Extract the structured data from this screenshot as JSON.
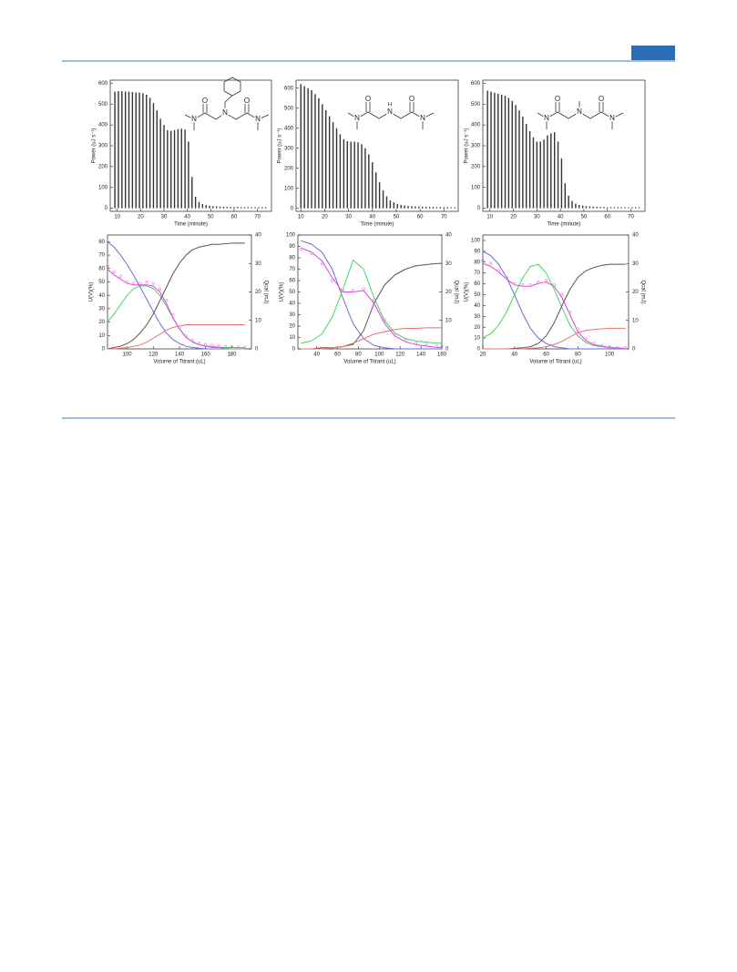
{
  "chart_data": [
    {
      "type": "bar",
      "x_label": "Time (minute)",
      "y_label": "Power (uJ s⁻¹)",
      "color": "#333333",
      "x": [
        9,
        10.5,
        12,
        13.5,
        15,
        16.5,
        18,
        19.5,
        21,
        22.5,
        24,
        25.5,
        27,
        28.5,
        30,
        31.5,
        33,
        34.5,
        36,
        37.5,
        39,
        40.5,
        42,
        43.5,
        45,
        46.5,
        48,
        49.5,
        51,
        52.5,
        54,
        55.5,
        57,
        58.5,
        60,
        61.5,
        63,
        64.5,
        66,
        67.5,
        69,
        70.5,
        72,
        73.5
      ],
      "values": [
        560,
        562,
        562,
        560,
        560,
        558,
        556,
        555,
        552,
        545,
        530,
        505,
        470,
        430,
        400,
        375,
        372,
        375,
        380,
        382,
        378,
        320,
        150,
        55,
        30,
        20,
        15,
        12,
        10,
        9,
        8,
        7,
        7,
        6,
        6,
        6,
        5,
        5,
        5,
        5,
        5,
        5,
        5,
        5
      ],
      "xlim": [
        7,
        76
      ],
      "xticks": [
        10,
        20,
        30,
        40,
        50,
        60,
        70
      ],
      "ylim": [
        -15,
        615
      ],
      "yticks": [
        0,
        100,
        200,
        300,
        400,
        500,
        600
      ]
    },
    {
      "type": "bar",
      "x_label": "Time (minute)",
      "y_label": "Power (uJ s⁻¹)",
      "color": "#333333",
      "x": [
        10,
        11.5,
        13,
        14.5,
        16,
        17.5,
        19,
        20.5,
        22,
        23.5,
        25,
        26.5,
        28,
        29.5,
        31,
        32.5,
        34,
        35.5,
        37,
        38.5,
        40,
        41.5,
        43,
        44.5,
        46,
        47.5,
        49,
        50.5,
        52,
        53.5,
        55,
        56.5,
        58,
        59.5,
        61,
        62.5,
        64,
        65.5,
        67,
        68.5,
        70,
        71.5,
        73,
        74.5
      ],
      "values": [
        620,
        610,
        600,
        590,
        570,
        550,
        520,
        490,
        460,
        430,
        400,
        370,
        345,
        335,
        333,
        333,
        330,
        320,
        300,
        270,
        230,
        180,
        130,
        90,
        60,
        40,
        30,
        22,
        17,
        14,
        12,
        11,
        10,
        9,
        8,
        8,
        7,
        7,
        6,
        6,
        6,
        6,
        5,
        5
      ],
      "xlim": [
        8,
        76
      ],
      "xticks": [
        10,
        20,
        30,
        40,
        50,
        60,
        70
      ],
      "ylim": [
        -15,
        640
      ],
      "yticks": [
        0,
        100,
        200,
        300,
        400,
        500,
        600
      ]
    },
    {
      "type": "bar",
      "x_label": "Time (minute)",
      "y_label": "Power (uJ s⁻¹)",
      "color": "#333333",
      "x": [
        9,
        10.5,
        12,
        13.5,
        15,
        16.5,
        18,
        19.5,
        21,
        22.5,
        24,
        25.5,
        27,
        28.5,
        30,
        31.5,
        33,
        34.5,
        36,
        37.5,
        39,
        40.5,
        42,
        43.5,
        45,
        46.5,
        48,
        49.5,
        51,
        52.5,
        54,
        55.5,
        57,
        58.5,
        60,
        61.5,
        63,
        64.5,
        66,
        67.5,
        69,
        70.5,
        72,
        73.5
      ],
      "values": [
        565,
        560,
        555,
        550,
        545,
        540,
        530,
        515,
        495,
        470,
        440,
        405,
        370,
        340,
        320,
        320,
        330,
        350,
        360,
        365,
        320,
        240,
        120,
        60,
        35,
        22,
        16,
        13,
        10,
        9,
        8,
        7,
        6,
        6,
        5,
        5,
        5,
        5,
        5,
        5,
        5,
        5,
        5,
        5
      ],
      "xlim": [
        7,
        76
      ],
      "xticks": [
        10,
        20,
        30,
        40,
        50,
        60,
        70
      ],
      "ylim": [
        -15,
        615
      ],
      "yticks": [
        0,
        100,
        200,
        300,
        400,
        500,
        600
      ]
    },
    {
      "type": "line",
      "x_label": "Volume of Titrant (uL)",
      "y_label": "U(V)(%)",
      "y2_label": "Qcal (mJ)",
      "x": [
        85,
        90,
        95,
        100,
        105,
        110,
        115,
        120,
        125,
        130,
        135,
        140,
        145,
        150,
        155,
        160,
        165,
        170,
        175,
        180,
        185,
        190
      ],
      "series": [
        {
          "color": "#6b6bd6",
          "values": [
            80,
            76,
            70,
            63,
            55,
            46,
            37,
            28,
            19,
            12,
            7,
            4,
            2,
            1,
            0.5,
            0,
            0,
            0,
            0,
            0,
            0,
            0
          ]
        },
        {
          "color": "#44d65e",
          "values": [
            20,
            26,
            33,
            40,
            45,
            47,
            47,
            45,
            40,
            32,
            23,
            15,
            9,
            5,
            3,
            2,
            1,
            1,
            0.5,
            0,
            0,
            0
          ]
        },
        {
          "color": "#555555",
          "values": [
            0,
            1,
            2,
            4,
            7,
            12,
            18,
            26,
            36,
            46,
            56,
            64,
            70,
            74,
            76,
            77,
            78,
            78,
            78.5,
            79,
            79,
            79
          ]
        },
        {
          "color": "#e87272",
          "values": [
            0,
            0,
            0.5,
            1,
            2,
            3,
            5,
            8,
            11,
            14,
            16,
            17,
            18,
            18,
            18,
            18,
            18,
            18,
            18,
            18,
            18,
            18
          ]
        },
        {
          "color": "#e040e0",
          "axis": "y2",
          "values": [
            28,
            26,
            24.5,
            23,
            22.5,
            22.5,
            22.5,
            22,
            20,
            16,
            11,
            7,
            4,
            2.5,
            1.5,
            1,
            0.8,
            0.6,
            0.5,
            0.5,
            0.4,
            0.4
          ]
        },
        {
          "color": "#e878e8",
          "axis": "y2",
          "mode": "markers",
          "values": [
            29,
            27,
            25.5,
            23.5,
            23,
            23,
            23.5,
            23,
            21,
            17,
            12,
            7.5,
            4.5,
            3,
            2,
            1.5,
            1.2,
            1,
            0.8,
            0.7,
            0.6,
            0.6
          ]
        }
      ],
      "xlim": [
        85,
        195
      ],
      "xticks": [
        100,
        120,
        140,
        160,
        180
      ],
      "ylim": [
        0,
        85
      ],
      "yticks": [
        0,
        10,
        20,
        30,
        40,
        50,
        60,
        70,
        80
      ],
      "y2lim": [
        0,
        40
      ],
      "y2ticks": [
        0,
        10,
        20,
        30,
        40
      ]
    },
    {
      "type": "line",
      "x_label": "Volume of Titrant (uL)",
      "y_label": "U(V)(%)",
      "y2_label": "Qcal (mJ)",
      "x": [
        25,
        35,
        45,
        55,
        65,
        75,
        85,
        95,
        105,
        115,
        125,
        135,
        145,
        155,
        160
      ],
      "series": [
        {
          "color": "#6b6bd6",
          "values": [
            95,
            92,
            85,
            70,
            45,
            22,
            9,
            3,
            1,
            0,
            0,
            0,
            0,
            0,
            0
          ]
        },
        {
          "color": "#44d65e",
          "values": [
            5,
            7,
            13,
            28,
            52,
            78,
            70,
            45,
            25,
            14,
            9,
            7,
            6,
            5,
            5
          ]
        },
        {
          "color": "#555555",
          "values": [
            0,
            0,
            1,
            1,
            2,
            4,
            16,
            40,
            56,
            65,
            70,
            73,
            74,
            75,
            75
          ]
        },
        {
          "color": "#e87272",
          "values": [
            0,
            0,
            0,
            1,
            2,
            5,
            9,
            13,
            15,
            17,
            18,
            18,
            18.5,
            18.5,
            18.5
          ]
        },
        {
          "color": "#e040e0",
          "axis": "y2",
          "values": [
            35.5,
            34,
            31,
            25,
            20,
            20,
            20.5,
            16,
            9,
            4.5,
            2.5,
            1.5,
            1,
            0.5,
            0.5
          ]
        },
        {
          "color": "#e878e8",
          "axis": "y2",
          "mode": "markers",
          "values": [
            35,
            33.5,
            30,
            24,
            20.5,
            20.5,
            21,
            17,
            10,
            5,
            3,
            2,
            1.5,
            1,
            1
          ]
        }
      ],
      "xlim": [
        22,
        160
      ],
      "xticks": [
        40,
        60,
        80,
        100,
        120,
        140,
        160
      ],
      "ylim": [
        0,
        100
      ],
      "yticks": [
        0,
        10,
        20,
        30,
        40,
        50,
        60,
        70,
        80,
        90,
        100
      ],
      "y2lim": [
        0,
        40
      ],
      "y2ticks": [
        0,
        10,
        20,
        30,
        40
      ]
    },
    {
      "type": "line",
      "x_label": "Volume of Titrant (uL)",
      "y_label": "U(V)(%)",
      "y2_label": "Qcal (mJ)",
      "x": [
        20,
        25,
        30,
        35,
        40,
        45,
        50,
        55,
        60,
        65,
        70,
        75,
        80,
        85,
        90,
        95,
        100,
        105,
        110
      ],
      "series": [
        {
          "color": "#6b6bd6",
          "values": [
            90,
            86,
            78,
            66,
            50,
            33,
            19,
            10,
            5,
            2,
            1,
            0,
            0,
            0,
            0,
            0,
            0,
            0,
            0
          ]
        },
        {
          "color": "#44d65e",
          "values": [
            10,
            14,
            22,
            34,
            50,
            65,
            76,
            78,
            70,
            55,
            38,
            22,
            12,
            6,
            3,
            2,
            1,
            1,
            0
          ]
        },
        {
          "color": "#555555",
          "values": [
            0,
            0,
            0,
            0,
            0.5,
            1,
            2,
            5,
            12,
            24,
            40,
            55,
            66,
            72,
            75,
            77,
            78,
            78,
            78
          ]
        },
        {
          "color": "#e87272",
          "values": [
            0,
            0,
            0,
            0,
            0,
            0,
            0.5,
            1,
            2,
            4,
            7,
            11,
            15,
            17,
            18,
            18.5,
            19,
            19,
            19
          ]
        },
        {
          "color": "#e040e0",
          "axis": "y2",
          "values": [
            30,
            29,
            27,
            24.5,
            22.5,
            22,
            22,
            23,
            23.5,
            22,
            18,
            12,
            6,
            3,
            1.5,
            1,
            0.5,
            0.3,
            0.2
          ]
        },
        {
          "color": "#e878e8",
          "axis": "y2",
          "mode": "markers",
          "values": [
            31,
            30,
            27.5,
            25,
            23,
            22.5,
            22.5,
            23.5,
            24,
            22.5,
            19,
            13,
            7,
            3.5,
            2,
            1.2,
            0.8,
            0.5,
            0.4
          ]
        }
      ],
      "xlim": [
        20,
        112
      ],
      "xticks": [
        20,
        40,
        60,
        80,
        100
      ],
      "ylim": [
        0,
        105
      ],
      "yticks": [
        0,
        10,
        20,
        30,
        40,
        50,
        60,
        70,
        80,
        90,
        100
      ],
      "y2lim": [
        0,
        40
      ],
      "y2ticks": [
        0,
        10,
        20,
        30,
        40
      ]
    }
  ],
  "structures": [
    {
      "atoms": [
        "O",
        "N",
        "N",
        "O",
        "N"
      ]
    },
    {
      "atoms": [
        "O",
        "N",
        "H",
        "N",
        "O",
        "N"
      ]
    },
    {
      "atoms": [
        "O",
        "N",
        "N",
        "O",
        "N"
      ]
    }
  ]
}
